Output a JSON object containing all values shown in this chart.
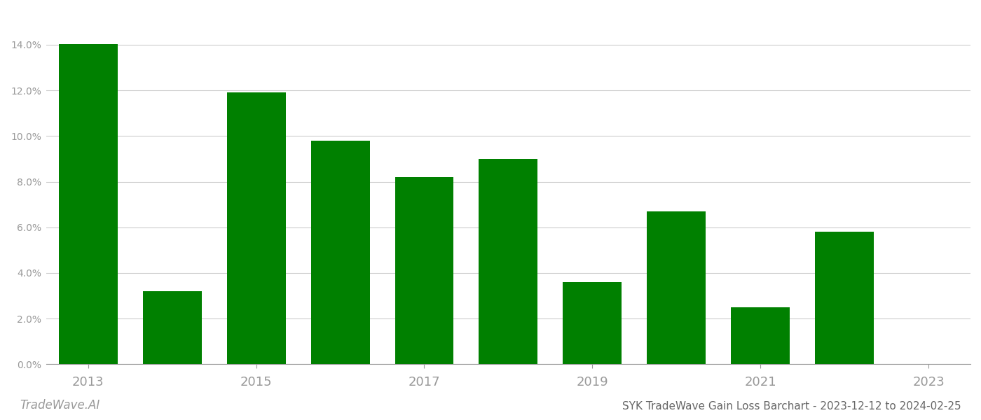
{
  "years": [
    2013,
    2014,
    2015,
    2016,
    2017,
    2018,
    2019,
    2020,
    2021,
    2022
  ],
  "values": [
    0.1402,
    0.032,
    0.119,
    0.098,
    0.082,
    0.09,
    0.036,
    0.067,
    0.025,
    0.058
  ],
  "bar_color": "#008000",
  "background_color": "#ffffff",
  "title": "SYK TradeWave Gain Loss Barchart - 2023-12-12 to 2024-02-25",
  "watermark": "TradeWave.AI",
  "ylim": [
    0,
    0.155
  ],
  "yticks": [
    0.0,
    0.02,
    0.04,
    0.06,
    0.08,
    0.1,
    0.12,
    0.14
  ],
  "xticks": [
    2013,
    2015,
    2017,
    2019,
    2021,
    2023
  ],
  "xlim": [
    2012.5,
    2023.5
  ],
  "grid_color": "#cccccc",
  "tick_label_color": "#999999",
  "title_color": "#666666",
  "watermark_color": "#999999",
  "bar_width": 0.7
}
